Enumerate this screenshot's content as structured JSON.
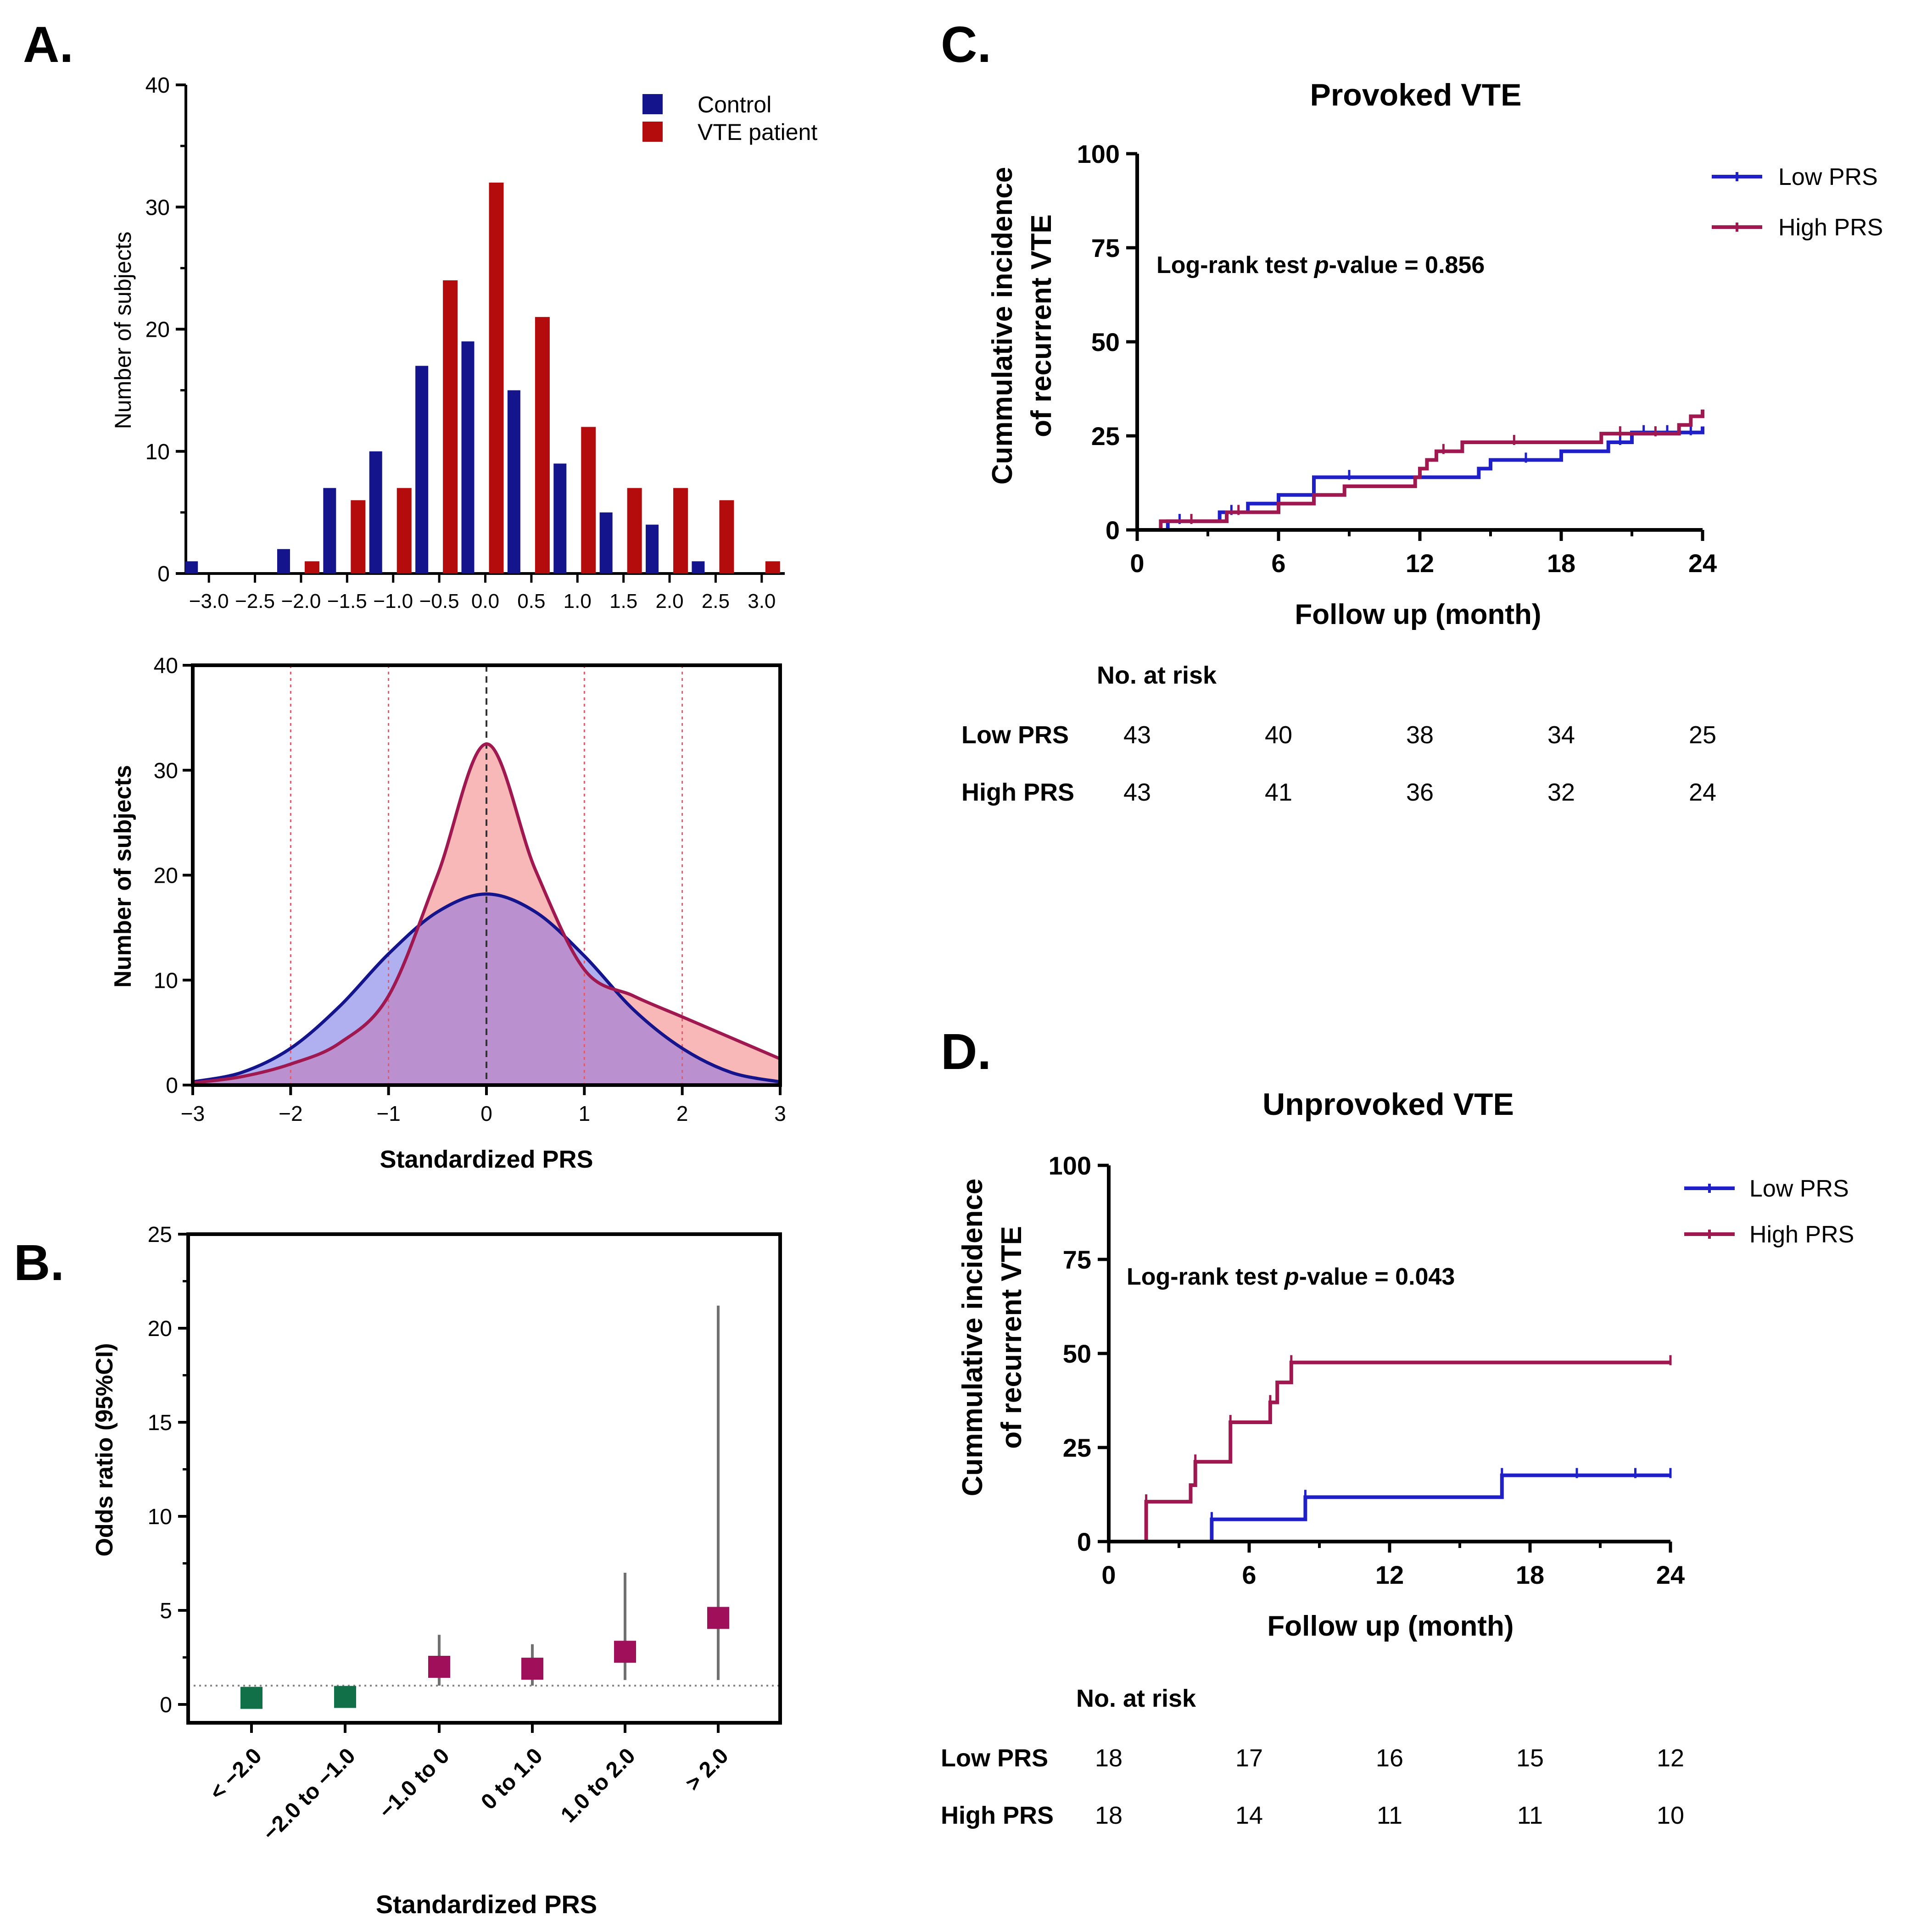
{
  "panel_letters": {
    "A": "A.",
    "B": "B.",
    "C": "C.",
    "D": "D."
  },
  "colors": {
    "control": "#14148c",
    "vte": "#b40c0c",
    "low_prs": "#2020c8",
    "high_prs": "#a01850",
    "control_fill": "#b0b0f0",
    "vte_fill": "#f8b8b8",
    "overlap_fill": "#bb90cf",
    "green_marker": "#127048",
    "magenta_marker": "#a0105a",
    "ci_line": "#707070"
  },
  "chart_data": [
    {
      "id": "histogram",
      "type": "bar",
      "ylabel": "Number of subjects",
      "ylim": [
        0,
        40
      ],
      "yticks": [
        0,
        10,
        20,
        30,
        40
      ],
      "xticks": [
        "−3.0",
        "−2.5",
        "−2.0",
        "−1.5",
        "−1.0",
        "−0.5",
        "0.0",
        "0.5",
        "1.0",
        "1.5",
        "2.0",
        "2.5",
        "3.0"
      ],
      "legend": [
        "Control",
        "VTE patient"
      ],
      "series": [
        {
          "name": "Control",
          "x": [
            -3.0,
            -2.0,
            -1.5,
            -1.0,
            -0.5,
            0.0,
            0.5,
            1.0,
            1.5,
            2.0,
            2.5
          ],
          "values": [
            1,
            2,
            7,
            10,
            17,
            19,
            15,
            9,
            5,
            4,
            1
          ]
        },
        {
          "name": "VTE patient",
          "x": [
            -2.0,
            -1.5,
            -1.0,
            -0.5,
            0.0,
            0.5,
            1.0,
            1.5,
            2.0,
            2.5,
            3.0
          ],
          "values": [
            1,
            6,
            7,
            24,
            32,
            21,
            12,
            7,
            7,
            6,
            1
          ]
        }
      ]
    },
    {
      "id": "density",
      "type": "area",
      "xlabel": "Standardized PRS",
      "ylabel": "Number of subjects",
      "xlim": [
        -3,
        3
      ],
      "ylim": [
        0,
        40
      ],
      "xticks": [
        "−3",
        "−2",
        "−1",
        "0",
        "1",
        "2",
        "3"
      ],
      "yticks": [
        0,
        10,
        20,
        30,
        40
      ],
      "series": [
        {
          "name": "Control",
          "x": [
            -3,
            -2.5,
            -2,
            -1.5,
            -1,
            -0.5,
            0,
            0.5,
            1,
            1.5,
            2,
            2.5,
            3
          ],
          "values": [
            0.3,
            1.2,
            3.5,
            7.5,
            12.5,
            16.5,
            18.2,
            16.5,
            12.3,
            7.2,
            3.5,
            1.2,
            0.3
          ]
        },
        {
          "name": "VTE patient",
          "x": [
            -3,
            -2.5,
            -2,
            -1.5,
            -1,
            -0.5,
            0,
            0.5,
            1,
            1.5,
            2,
            2.5,
            3
          ],
          "values": [
            0.2,
            0.8,
            2.0,
            4.0,
            8.5,
            20.0,
            32.5,
            20.5,
            11.0,
            8.5,
            6.5,
            4.5,
            2.5
          ]
        }
      ]
    },
    {
      "id": "forest",
      "type": "scatter",
      "xlabel": "Standardized PRS",
      "ylabel": "Odds ratio (95%CI)",
      "ylim": [
        0,
        25
      ],
      "yticks": [
        0,
        5,
        10,
        15,
        20,
        25
      ],
      "reference_line": 1,
      "categories": [
        "< −2.0",
        "−2.0 to −1.0",
        "−1.0 to 0",
        "0 to 1.0",
        "1.0 to 2.0",
        "> 2.0"
      ],
      "or": [
        0.35,
        0.4,
        2.0,
        1.9,
        2.8,
        4.6
      ],
      "ci_low": [
        null,
        null,
        1.0,
        1.0,
        1.3,
        1.3
      ],
      "ci_high": [
        null,
        null,
        3.7,
        3.2,
        7.0,
        21.2
      ]
    },
    {
      "id": "km_provoked",
      "type": "line",
      "title": "Provoked VTE",
      "xlabel": "Follow up (month)",
      "ylabel": [
        "Cummulative incidence",
        "of recurrent VTE"
      ],
      "xlim": [
        0,
        24
      ],
      "ylim": [
        0,
        100
      ],
      "xticks": [
        0,
        6,
        12,
        18,
        24
      ],
      "yticks": [
        0,
        25,
        50,
        75,
        100
      ],
      "annotation": {
        "prefix": "Log-rank test ",
        "italic": "p",
        "suffix": "-value = 0.856"
      },
      "series": [
        {
          "name": "Low PRS",
          "steps": [
            [
              0,
              0
            ],
            [
              1.3,
              2.3
            ],
            [
              3.5,
              4.7
            ],
            [
              4.7,
              7.0
            ],
            [
              6.0,
              9.3
            ],
            [
              7.5,
              14.0
            ],
            [
              14.5,
              16.3
            ],
            [
              15.0,
              18.6
            ],
            [
              18.0,
              20.9
            ],
            [
              20.0,
              23.3
            ],
            [
              21.0,
              25.9
            ],
            [
              24,
              27.5
            ]
          ],
          "censor": [
            1.8,
            4.0,
            9.0,
            16.5,
            20.5,
            21.5,
            22.5,
            23.5
          ]
        },
        {
          "name": "High PRS",
          "steps": [
            [
              0,
              0
            ],
            [
              1.0,
              2.3
            ],
            [
              3.8,
              4.7
            ],
            [
              6.0,
              7.0
            ],
            [
              7.5,
              9.3
            ],
            [
              8.8,
              11.6
            ],
            [
              11.8,
              14.0
            ],
            [
              12.0,
              16.3
            ],
            [
              12.3,
              18.6
            ],
            [
              12.7,
              20.9
            ],
            [
              13.8,
              23.3
            ],
            [
              19.7,
              25.6
            ],
            [
              23.0,
              27.9
            ],
            [
              23.5,
              30.2
            ],
            [
              24,
              32.0
            ]
          ],
          "censor": [
            2.3,
            4.3,
            13.0,
            16.0,
            20.5,
            22.0
          ]
        }
      ],
      "risk_table": {
        "title": "No. at risk",
        "rows": [
          {
            "label": "Low PRS",
            "values": [
              "43",
              "40",
              "38",
              "34",
              "25"
            ]
          },
          {
            "label": "High PRS",
            "values": [
              "43",
              "41",
              "36",
              "32",
              "24"
            ]
          }
        ]
      }
    },
    {
      "id": "km_unprovoked",
      "type": "line",
      "title": "Unprovoked VTE",
      "xlabel": "Follow up (month)",
      "ylabel": [
        "Cummulative incidence",
        "of recurrent VTE"
      ],
      "xlim": [
        0,
        24
      ],
      "ylim": [
        0,
        100
      ],
      "xticks": [
        0,
        6,
        12,
        18,
        24
      ],
      "yticks": [
        0,
        25,
        50,
        75,
        100
      ],
      "annotation": {
        "prefix": "Log-rank test ",
        "italic": "p",
        "suffix": "-value = 0.043"
      },
      "series": [
        {
          "name": "Low PRS",
          "steps": [
            [
              0,
              0
            ],
            [
              4.4,
              5.9
            ],
            [
              8.4,
              11.8
            ],
            [
              16.8,
              17.6
            ],
            [
              24,
              17.6
            ]
          ],
          "censor": [
            4.4,
            8.4,
            16.8,
            20.0,
            22.5,
            24
          ]
        },
        {
          "name": "High PRS",
          "steps": [
            [
              0,
              0
            ],
            [
              1.6,
              10.6
            ],
            [
              3.5,
              15.0
            ],
            [
              3.7,
              21.2
            ],
            [
              5.2,
              31.7
            ],
            [
              6.9,
              37.0
            ],
            [
              7.2,
              42.3
            ],
            [
              7.8,
              47.6
            ],
            [
              24,
              47.6
            ]
          ],
          "censor": [
            1.6,
            3.7,
            5.2,
            6.9,
            7.8,
            24
          ]
        }
      ],
      "risk_table": {
        "title": "No. at risk",
        "rows": [
          {
            "label": "Low PRS",
            "values": [
              "18",
              "17",
              "16",
              "15",
              "12"
            ]
          },
          {
            "label": "High PRS",
            "values": [
              "18",
              "14",
              "11",
              "11",
              "10"
            ]
          }
        ]
      }
    }
  ]
}
